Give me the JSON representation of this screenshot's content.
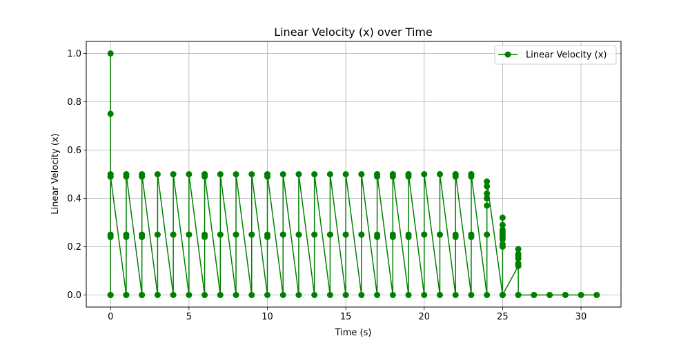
{
  "chart_data": {
    "type": "line",
    "title": "Linear Velocity (x) over Time",
    "xlabel": "Time (s)",
    "ylabel": "Linear Velocity (x)",
    "xlim": [
      -1.55,
      32.55
    ],
    "ylim": [
      -0.05,
      1.05
    ],
    "xticks": [
      0,
      5,
      10,
      15,
      20,
      25,
      30
    ],
    "yticks": [
      0.0,
      0.2,
      0.4,
      0.6,
      0.8,
      1.0
    ],
    "xtick_labels": [
      "0",
      "5",
      "10",
      "15",
      "20",
      "25",
      "30"
    ],
    "ytick_labels": [
      "0.0",
      "0.2",
      "0.4",
      "0.6",
      "0.8",
      "1.0"
    ],
    "grid": true,
    "legend_position": "top-right",
    "color": "#008000",
    "series": [
      {
        "name": "Linear Velocity (x)",
        "marker": "circle",
        "x": [
          0,
          0,
          0,
          0,
          0,
          0,
          0,
          0,
          0,
          0,
          1,
          1,
          1,
          1,
          1,
          1,
          2,
          2,
          2,
          2,
          2,
          2,
          3,
          3,
          3,
          3,
          4,
          4,
          4,
          4,
          5,
          5,
          5,
          5,
          6,
          6,
          6,
          6,
          6,
          6,
          7,
          7,
          7,
          7,
          8,
          8,
          8,
          8,
          9,
          9,
          9,
          9,
          10,
          10,
          10,
          10,
          10,
          10,
          11,
          11,
          11,
          11,
          12,
          12,
          12,
          12,
          13,
          13,
          13,
          13,
          14,
          14,
          14,
          14,
          15,
          15,
          15,
          15,
          16,
          16,
          16,
          16,
          17,
          17,
          17,
          17,
          17,
          17,
          18,
          18,
          18,
          18,
          18,
          18,
          19,
          19,
          19,
          19,
          19,
          19,
          20,
          20,
          20,
          20,
          21,
          21,
          21,
          21,
          22,
          22,
          22,
          22,
          22,
          22,
          23,
          23,
          23,
          23,
          23,
          23,
          24,
          24,
          24,
          24,
          24,
          24,
          24,
          24,
          25,
          25,
          25,
          25,
          25,
          25,
          25,
          25,
          25,
          25,
          25,
          25,
          26,
          26,
          26,
          26,
          26,
          26,
          26,
          26,
          27,
          27,
          28,
          28,
          29,
          29,
          30,
          30,
          31,
          31
        ],
        "y": [
          0.0,
          1.0,
          0.75,
          0.5,
          0.49,
          0.25,
          0.24,
          0.0,
          0.0,
          0.49,
          0.0,
          0.0,
          0.24,
          0.25,
          0.49,
          0.5,
          0.0,
          0.0,
          0.24,
          0.25,
          0.49,
          0.5,
          0.0,
          0.25,
          0.25,
          0.5,
          0.0,
          0.25,
          0.25,
          0.5,
          0.0,
          0.25,
          0.25,
          0.5,
          0.0,
          0.24,
          0.25,
          0.49,
          0.5,
          0.5,
          0.0,
          0.25,
          0.25,
          0.5,
          0.0,
          0.25,
          0.25,
          0.5,
          0.0,
          0.25,
          0.25,
          0.5,
          0.0,
          0.24,
          0.25,
          0.49,
          0.5,
          0.5,
          0.0,
          0.25,
          0.25,
          0.5,
          0.0,
          0.25,
          0.25,
          0.5,
          0.0,
          0.25,
          0.25,
          0.5,
          0.0,
          0.25,
          0.25,
          0.5,
          0.0,
          0.25,
          0.25,
          0.5,
          0.0,
          0.25,
          0.25,
          0.5,
          0.0,
          0.24,
          0.25,
          0.49,
          0.5,
          0.5,
          0.0,
          0.24,
          0.25,
          0.49,
          0.5,
          0.5,
          0.0,
          0.24,
          0.25,
          0.49,
          0.5,
          0.5,
          0.0,
          0.25,
          0.25,
          0.5,
          0.0,
          0.25,
          0.25,
          0.5,
          0.0,
          0.24,
          0.25,
          0.49,
          0.5,
          0.5,
          0.0,
          0.24,
          0.25,
          0.49,
          0.5,
          0.5,
          0.0,
          0.25,
          0.25,
          0.37,
          0.4,
          0.42,
          0.45,
          0.47,
          0.0,
          0.2,
          0.21,
          0.23,
          0.24,
          0.25,
          0.26,
          0.27,
          0.29,
          0.32,
          0.0,
          0.0,
          0.12,
          0.13,
          0.15,
          0.16,
          0.17,
          0.19,
          0.0,
          0.0,
          0.0,
          0.0,
          0.0,
          0.0,
          0.0,
          0.0,
          0.0,
          0.0,
          0.0,
          0.0
        ]
      }
    ]
  }
}
